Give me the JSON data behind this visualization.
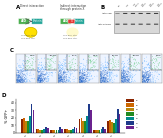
{
  "series_colors": [
    "#8B2500",
    "#CD6600",
    "#B8860B",
    "#228B22",
    "#008B8B",
    "#1E3A8A",
    "#6B238E"
  ],
  "series_labels": [
    "s1",
    "s2",
    "s3",
    "s4",
    "s5",
    "s6",
    "s7"
  ],
  "n_groups": 7,
  "n_series": 7,
  "values": [
    [
      18,
      5,
      4,
      5,
      18,
      4,
      15
    ],
    [
      20,
      5,
      4,
      5,
      20,
      4,
      17
    ],
    [
      16,
      4,
      3,
      4,
      16,
      3,
      14
    ],
    [
      15,
      4,
      3,
      4,
      15,
      3,
      13
    ],
    [
      22,
      5,
      4,
      5,
      22,
      5,
      18
    ],
    [
      38,
      8,
      7,
      8,
      38,
      7,
      32
    ],
    [
      30,
      6,
      5,
      6,
      30,
      5,
      25
    ]
  ],
  "ylabel": "% GFP+",
  "ylim": [
    0,
    45
  ],
  "yticks": [
    0,
    10,
    20,
    30,
    40
  ],
  "background_color": "#ffffff",
  "flow_pcts": [
    "2.3%",
    "18.4%",
    "8.7%",
    "3.1%",
    "15.2%",
    "12.6%",
    "5.8%"
  ],
  "wb_lane_count": 6,
  "diagram_colors": {
    "green_box": "#4CAF50",
    "teal_box": "#26A69A",
    "blue_box": "#1E88E5",
    "red_box": "#E53935",
    "orange_box": "#FB8C00",
    "yellow_bright": "#FFE000",
    "yellow_dim": "#FFFACD"
  }
}
